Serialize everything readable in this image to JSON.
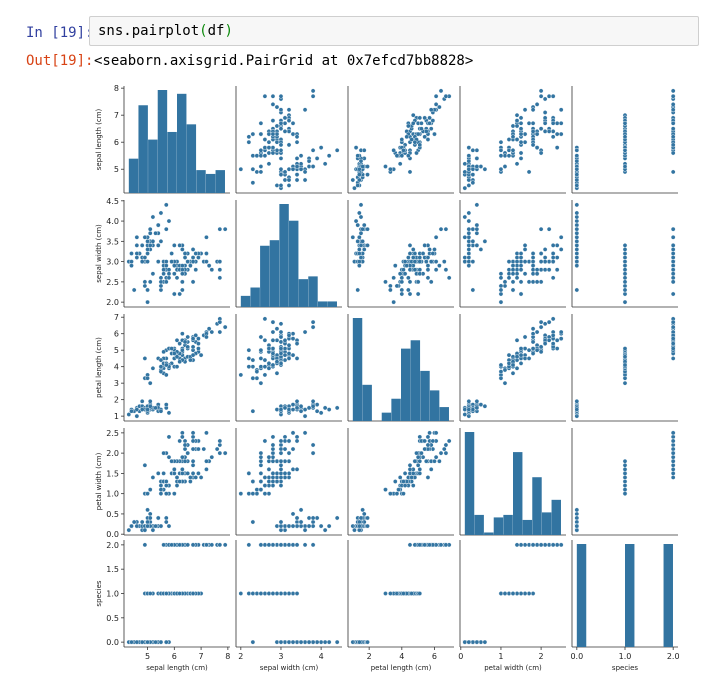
{
  "cell": {
    "in_prompt": "In [19]:",
    "code_fn": "sns.pairplot",
    "code_open": "(",
    "code_arg": "df",
    "code_close": ")",
    "out_prompt": "Out[19]:",
    "out_text": "<seaborn.axisgrid.PairGrid at 0x7efcd7bb8828>"
  },
  "colors": {
    "marker": "#3274a1",
    "prompt_in": "#303f9f",
    "prompt_out": "#d84315"
  },
  "chart_data": {
    "type": "scatter",
    "title": "",
    "variables": [
      "sepal length (cm)",
      "sepal width (cm)",
      "petal length (cm)",
      "petal width (cm)",
      "species"
    ],
    "ranges": [
      [
        4.3,
        7.9
      ],
      [
        2.0,
        4.4
      ],
      [
        1.0,
        6.9
      ],
      [
        0.1,
        2.5
      ],
      [
        0.0,
        2.0
      ]
    ],
    "ticks": [
      [
        5,
        6,
        7,
        8
      ],
      [
        2.0,
        2.5,
        3.0,
        3.5,
        4.0,
        4.5
      ],
      [
        1,
        2,
        3,
        4,
        5,
        6,
        7
      ],
      [
        0.0,
        0.5,
        1.0,
        1.5,
        2.0,
        2.5
      ],
      [
        0.0,
        0.5,
        1.0,
        1.5,
        2.0
      ]
    ],
    "xticks": [
      [
        5,
        6,
        7,
        8
      ],
      [
        2,
        3,
        4
      ],
      [
        2,
        4,
        6
      ],
      [
        0,
        1,
        2
      ],
      [
        0.0,
        1.0,
        2.0
      ]
    ],
    "tick_labels": [
      [
        "5",
        "6",
        "7",
        "8"
      ],
      [
        "2.0",
        "2.5",
        "3.0",
        "3.5",
        "4.0",
        "4.5"
      ],
      [
        "1",
        "2",
        "3",
        "4",
        "5",
        "6",
        "7"
      ],
      [
        "0.0",
        "0.5",
        "1.0",
        "1.5",
        "2.0",
        "2.5"
      ],
      [
        "0.0",
        "0.5",
        "1.0",
        "1.5",
        "2.0"
      ]
    ],
    "xtick_labels": [
      [
        "5",
        "6",
        "7",
        "8"
      ],
      [
        "2",
        "3",
        "4"
      ],
      [
        "2",
        "4",
        "6"
      ],
      [
        "0",
        "1",
        "2"
      ],
      [
        "0.0",
        "1.0",
        "2.0"
      ]
    ],
    "histograms": [
      {
        "bins": [
          4.3,
          4.66,
          5.02,
          5.38,
          5.74,
          6.1,
          6.46,
          6.82,
          7.18,
          7.54,
          7.9
        ],
        "counts": [
          9,
          23,
          14,
          27,
          16,
          26,
          18,
          6,
          5,
          6
        ]
      },
      {
        "bins": [
          2.0,
          2.24,
          2.48,
          2.72,
          2.96,
          3.2,
          3.44,
          3.68,
          3.92,
          4.16,
          4.4
        ],
        "counts": [
          4,
          7,
          22,
          24,
          37,
          31,
          10,
          11,
          2,
          2
        ]
      },
      {
        "bins": [
          1.0,
          1.59,
          2.18,
          2.77,
          3.36,
          3.95,
          4.54,
          5.13,
          5.72,
          6.31,
          6.9
        ],
        "counts": [
          37,
          13,
          0,
          3,
          8,
          26,
          29,
          18,
          11,
          5
        ]
      },
      {
        "bins": [
          0.1,
          0.34,
          0.58,
          0.82,
          1.06,
          1.3,
          1.54,
          1.78,
          2.02,
          2.26,
          2.5
        ],
        "counts": [
          41,
          8,
          1,
          7,
          8,
          33,
          6,
          23,
          9,
          14
        ]
      },
      {
        "bins": [
          0.0,
          0.2,
          0.4,
          0.6,
          0.8,
          1.0,
          1.2,
          1.4,
          1.6,
          1.8,
          2.0
        ],
        "counts": [
          50,
          0,
          0,
          0,
          0,
          50,
          0,
          0,
          0,
          50
        ]
      }
    ],
    "data": {
      "sepal_length": [
        5.1,
        4.9,
        4.7,
        4.6,
        5.0,
        5.4,
        4.6,
        5.0,
        4.4,
        4.9,
        5.4,
        4.8,
        4.8,
        4.3,
        5.8,
        5.7,
        5.4,
        5.1,
        5.7,
        5.1,
        5.4,
        5.1,
        4.6,
        5.1,
        4.8,
        5.0,
        5.0,
        5.2,
        5.2,
        4.7,
        4.8,
        5.4,
        5.2,
        5.5,
        4.9,
        5.0,
        5.5,
        4.9,
        4.4,
        5.1,
        5.0,
        4.5,
        4.4,
        5.0,
        5.1,
        4.8,
        5.1,
        4.6,
        5.3,
        5.0,
        7.0,
        6.4,
        6.9,
        5.5,
        6.5,
        5.7,
        6.3,
        4.9,
        6.6,
        5.2,
        5.0,
        5.9,
        6.0,
        6.1,
        5.6,
        6.7,
        5.6,
        5.8,
        6.2,
        5.6,
        5.9,
        6.1,
        6.3,
        6.1,
        6.4,
        6.6,
        6.8,
        6.7,
        6.0,
        5.7,
        5.5,
        5.5,
        5.8,
        6.0,
        5.4,
        6.0,
        6.7,
        6.3,
        5.6,
        5.5,
        5.5,
        6.1,
        5.8,
        5.0,
        5.6,
        5.7,
        5.7,
        6.2,
        5.1,
        5.7,
        6.3,
        5.8,
        7.1,
        6.3,
        6.5,
        7.6,
        4.9,
        7.3,
        6.7,
        7.2,
        6.5,
        6.4,
        6.8,
        5.7,
        5.8,
        6.4,
        6.5,
        7.7,
        7.7,
        6.0,
        6.9,
        5.6,
        7.7,
        6.3,
        6.7,
        7.2,
        6.2,
        6.1,
        6.4,
        7.2,
        7.4,
        7.9,
        6.4,
        6.3,
        6.1,
        7.7,
        6.3,
        6.4,
        6.0,
        6.9,
        6.7,
        6.9,
        5.8,
        6.8,
        6.7,
        6.7,
        6.3,
        6.5,
        6.2,
        5.9
      ],
      "sepal_width": [
        3.5,
        3.0,
        3.2,
        3.1,
        3.6,
        3.9,
        3.4,
        3.4,
        2.9,
        3.1,
        3.7,
        3.4,
        3.0,
        3.0,
        4.0,
        4.4,
        3.9,
        3.5,
        3.8,
        3.8,
        3.4,
        3.7,
        3.6,
        3.3,
        3.4,
        3.0,
        3.4,
        3.5,
        3.4,
        3.2,
        3.1,
        3.4,
        4.1,
        4.2,
        3.1,
        3.2,
        3.5,
        3.6,
        3.0,
        3.4,
        3.5,
        2.3,
        3.2,
        3.5,
        3.8,
        3.0,
        3.8,
        3.2,
        3.7,
        3.3,
        3.2,
        3.2,
        3.1,
        2.3,
        2.8,
        2.8,
        3.3,
        2.4,
        2.9,
        2.7,
        2.0,
        3.0,
        2.2,
        2.9,
        2.9,
        3.1,
        3.0,
        2.7,
        2.2,
        2.5,
        3.2,
        2.8,
        2.5,
        2.8,
        2.9,
        3.0,
        2.8,
        3.0,
        2.9,
        2.6,
        2.4,
        2.4,
        2.7,
        2.7,
        3.0,
        3.4,
        3.1,
        2.3,
        3.0,
        2.5,
        2.6,
        3.0,
        2.6,
        2.3,
        2.7,
        3.0,
        2.9,
        2.9,
        2.5,
        2.8,
        3.3,
        2.7,
        3.0,
        2.9,
        3.0,
        3.0,
        2.5,
        2.9,
        2.5,
        3.6,
        3.2,
        2.7,
        3.0,
        2.5,
        2.8,
        3.2,
        3.0,
        3.8,
        2.6,
        2.2,
        3.2,
        2.8,
        2.8,
        2.7,
        3.3,
        3.2,
        2.8,
        3.0,
        2.8,
        3.0,
        2.8,
        3.8,
        2.8,
        2.8,
        2.6,
        3.0,
        3.4,
        3.1,
        3.0,
        3.1,
        3.1,
        3.1,
        2.7,
        3.2,
        3.3,
        3.0,
        2.5,
        3.0,
        3.4,
        3.0
      ],
      "petal_length": [
        1.4,
        1.4,
        1.3,
        1.5,
        1.4,
        1.7,
        1.4,
        1.5,
        1.4,
        1.5,
        1.5,
        1.6,
        1.4,
        1.1,
        1.2,
        1.5,
        1.3,
        1.4,
        1.7,
        1.5,
        1.7,
        1.5,
        1.0,
        1.7,
        1.9,
        1.6,
        1.6,
        1.5,
        1.4,
        1.6,
        1.6,
        1.5,
        1.5,
        1.4,
        1.5,
        1.2,
        1.3,
        1.4,
        1.3,
        1.5,
        1.3,
        1.3,
        1.3,
        1.6,
        1.9,
        1.4,
        1.6,
        1.4,
        1.5,
        1.4,
        4.7,
        4.5,
        4.9,
        4.0,
        4.6,
        4.5,
        4.7,
        3.3,
        4.6,
        3.9,
        3.5,
        4.2,
        4.0,
        4.7,
        3.6,
        4.4,
        4.5,
        4.1,
        4.5,
        3.9,
        4.8,
        4.0,
        4.9,
        4.7,
        4.3,
        4.4,
        4.8,
        5.0,
        4.5,
        3.5,
        3.8,
        3.7,
        3.9,
        5.1,
        4.5,
        4.5,
        4.7,
        4.4,
        4.1,
        4.0,
        4.4,
        4.6,
        4.0,
        3.3,
        4.2,
        4.2,
        4.2,
        4.3,
        3.0,
        4.1,
        6.0,
        5.1,
        5.9,
        5.6,
        5.8,
        6.6,
        4.5,
        6.3,
        5.8,
        6.1,
        5.1,
        5.3,
        5.5,
        5.0,
        5.1,
        5.3,
        5.5,
        6.7,
        6.9,
        5.0,
        5.7,
        4.9,
        6.7,
        4.9,
        5.7,
        6.0,
        4.8,
        4.9,
        5.6,
        5.8,
        6.1,
        6.4,
        5.6,
        5.1,
        5.6,
        6.1,
        5.6,
        5.5,
        4.8,
        5.4,
        5.6,
        5.1,
        5.1,
        5.9,
        5.7,
        5.2,
        5.0,
        5.2,
        5.4,
        5.1
      ],
      "petal_width": [
        0.2,
        0.2,
        0.2,
        0.2,
        0.2,
        0.4,
        0.3,
        0.2,
        0.2,
        0.1,
        0.2,
        0.2,
        0.1,
        0.1,
        0.2,
        0.4,
        0.4,
        0.3,
        0.3,
        0.3,
        0.2,
        0.4,
        0.2,
        0.5,
        0.2,
        0.2,
        0.4,
        0.2,
        0.2,
        0.2,
        0.2,
        0.4,
        0.1,
        0.2,
        0.2,
        0.2,
        0.2,
        0.1,
        0.2,
        0.2,
        0.3,
        0.3,
        0.2,
        0.6,
        0.4,
        0.3,
        0.2,
        0.2,
        0.2,
        0.2,
        1.4,
        1.5,
        1.5,
        1.3,
        1.5,
        1.3,
        1.6,
        1.0,
        1.3,
        1.4,
        1.0,
        1.5,
        1.0,
        1.4,
        1.3,
        1.4,
        1.5,
        1.0,
        1.5,
        1.1,
        1.8,
        1.3,
        1.5,
        1.2,
        1.3,
        1.4,
        1.4,
        1.7,
        1.5,
        1.0,
        1.1,
        1.0,
        1.2,
        1.6,
        1.5,
        1.6,
        1.5,
        1.3,
        1.3,
        1.3,
        1.2,
        1.4,
        1.2,
        1.0,
        1.3,
        1.2,
        1.3,
        1.3,
        1.1,
        1.3,
        2.5,
        1.9,
        2.1,
        1.8,
        2.2,
        2.1,
        1.7,
        1.8,
        1.8,
        2.5,
        2.0,
        1.9,
        2.1,
        2.0,
        2.4,
        2.3,
        1.8,
        2.2,
        2.3,
        1.5,
        2.3,
        2.0,
        2.0,
        1.8,
        2.1,
        1.8,
        1.8,
        1.8,
        2.1,
        1.6,
        1.9,
        2.0,
        2.2,
        1.5,
        1.4,
        2.3,
        2.4,
        1.8,
        1.8,
        2.1,
        2.4,
        2.3,
        1.9,
        2.3,
        2.5,
        2.3,
        1.9,
        2.0,
        2.3,
        1.8
      ],
      "species_counts": [
        50,
        50,
        50
      ]
    }
  }
}
